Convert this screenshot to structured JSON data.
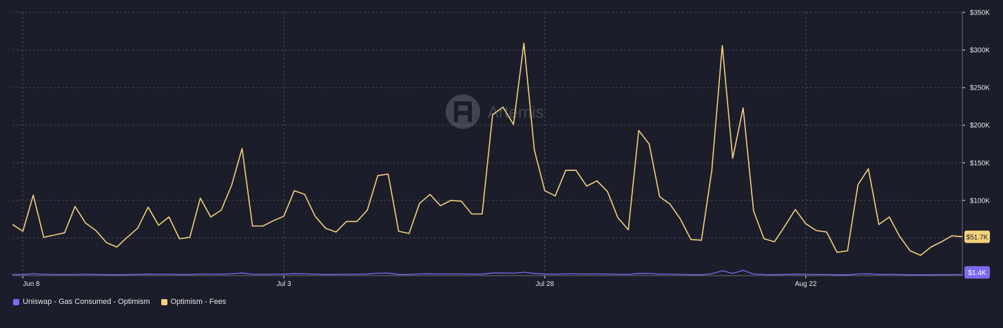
{
  "watermark": "Artemis",
  "colors": {
    "background": "#1c1d2a",
    "grid": "#4a4b5a",
    "axis_text": "#e6e6ea",
    "fees": "#f2d27c",
    "gas": "#7a6cf0"
  },
  "legend": {
    "items": [
      {
        "label": "Uniswap - Gas Consumed - Optimism",
        "color": "#7a6cf0"
      },
      {
        "label": "Optimism - Fees",
        "color": "#f2d27c"
      }
    ]
  },
  "chart_data": {
    "type": "line",
    "x_start": "Jun 7",
    "x_end": "Sep 8",
    "x_tick_labels": [
      "Jun 8",
      "Jul 3",
      "Jul 28",
      "Aug 22"
    ],
    "y_tick_labels": [
      "$350K",
      "$300K",
      "$250K",
      "$200K",
      "$150K",
      "$100K"
    ],
    "ylim": [
      0,
      350000
    ],
    "y_axis_position": "right",
    "grid": true,
    "legend_position": "bottom-left",
    "end_labels": {
      "fees": "$51.7K",
      "gas": "$1.4K"
    },
    "series": [
      {
        "name": "Optimism - Fees",
        "key": "fees",
        "values": [
          68000,
          59000,
          107000,
          51000,
          54000,
          57000,
          92000,
          70000,
          60000,
          44000,
          38000,
          51000,
          63000,
          91000,
          67000,
          78000,
          49000,
          51000,
          103000,
          78000,
          87000,
          120000,
          169000,
          66000,
          66000,
          73000,
          79000,
          113000,
          108000,
          79000,
          63000,
          58000,
          72000,
          72000,
          87000,
          133000,
          135000,
          59000,
          56000,
          96000,
          108000,
          93000,
          100000,
          99000,
          82000,
          82000,
          214000,
          224000,
          201000,
          309000,
          167000,
          113000,
          106000,
          140000,
          140000,
          119000,
          126000,
          112000,
          77000,
          61000,
          193000,
          175000,
          105000,
          95000,
          75000,
          48000,
          47000,
          140000,
          306000,
          156000,
          223000,
          86000,
          49000,
          45000,
          66000,
          88000,
          69000,
          60000,
          58000,
          31000,
          33000,
          121000,
          142000,
          68000,
          78000,
          52000,
          33000,
          27000,
          38000,
          45000,
          53000,
          51700
        ]
      },
      {
        "name": "Uniswap - Gas Consumed - Optimism",
        "key": "gas",
        "values": [
          1500,
          1600,
          2500,
          1700,
          1500,
          1400,
          1500,
          1800,
          1500,
          1300,
          1200,
          1400,
          1600,
          2000,
          1800,
          1900,
          1500,
          1500,
          2200,
          1900,
          2000,
          2400,
          3500,
          1700,
          1700,
          1900,
          2000,
          2600,
          2400,
          1900,
          1600,
          1600,
          1800,
          1800,
          2100,
          3200,
          3400,
          1600,
          1500,
          2300,
          2500,
          2200,
          2300,
          2300,
          2000,
          2000,
          3500,
          3600,
          3300,
          4500,
          2900,
          2100,
          2000,
          2400,
          2400,
          2200,
          2300,
          2100,
          1700,
          1500,
          3000,
          2800,
          2000,
          1900,
          1700,
          1300,
          1300,
          2500,
          6500,
          3000,
          7000,
          2100,
          1400,
          1300,
          1600,
          2000,
          1700,
          1500,
          1500,
          1100,
          1100,
          2200,
          2500,
          1600,
          1700,
          1400,
          1100,
          1000,
          1200,
          1300,
          1400,
          1400
        ]
      }
    ]
  }
}
